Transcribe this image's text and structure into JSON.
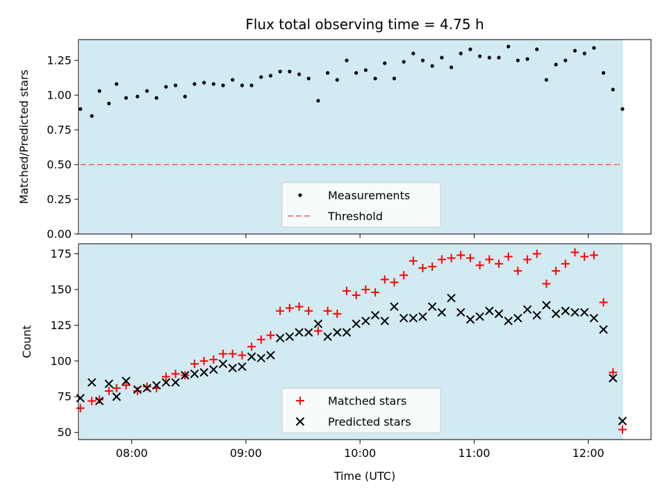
{
  "chart_data": [
    {
      "type": "scatter",
      "title": "Flux total observing time = 4.75 h",
      "xlabel": "",
      "ylabel": "Matched/Predicted stars",
      "xlim": [
        "07:32",
        "12:33"
      ],
      "ylim": [
        0,
        1.4
      ],
      "yticks": [
        "0.00",
        "0.25",
        "0.50",
        "0.75",
        "1.00",
        "1.25"
      ],
      "shaded_region": {
        "start": "07:33",
        "end": "12:18",
        "color": "#add8e6"
      },
      "legend_position": "bottom-center",
      "series": [
        {
          "name": "Measurements",
          "marker": "dot",
          "color": "#000000",
          "x": [
            "07:33",
            "07:39",
            "07:43",
            "07:48",
            "07:52",
            "07:57",
            "08:03",
            "08:08",
            "08:13",
            "08:18",
            "08:23",
            "08:28",
            "08:33",
            "08:38",
            "08:43",
            "08:48",
            "08:53",
            "08:58",
            "09:03",
            "09:08",
            "09:13",
            "09:18",
            "09:23",
            "09:28",
            "09:33",
            "09:38",
            "09:43",
            "09:48",
            "09:53",
            "09:58",
            "10:03",
            "10:08",
            "10:13",
            "10:18",
            "10:23",
            "10:28",
            "10:33",
            "10:38",
            "10:43",
            "10:48",
            "10:53",
            "10:58",
            "11:03",
            "11:08",
            "11:13",
            "11:18",
            "11:23",
            "11:28",
            "11:33",
            "11:38",
            "11:43",
            "11:48",
            "11:53",
            "11:58",
            "12:03",
            "12:08",
            "12:13",
            "12:18"
          ],
          "values": [
            0.9,
            0.85,
            1.03,
            0.94,
            1.08,
            0.98,
            0.99,
            1.03,
            0.98,
            1.06,
            1.07,
            0.99,
            1.08,
            1.09,
            1.08,
            1.07,
            1.11,
            1.07,
            1.07,
            1.13,
            1.14,
            1.17,
            1.17,
            1.15,
            1.12,
            0.96,
            1.16,
            1.11,
            1.25,
            1.16,
            1.18,
            1.12,
            1.23,
            1.12,
            1.24,
            1.3,
            1.25,
            1.21,
            1.27,
            1.2,
            1.3,
            1.33,
            1.28,
            1.27,
            1.27,
            1.35,
            1.25,
            1.26,
            1.33,
            1.11,
            1.22,
            1.25,
            1.32,
            1.3,
            1.34,
            1.16,
            1.04,
            0.9
          ]
        },
        {
          "name": "Threshold",
          "line": "dashed",
          "color": "#f08080",
          "value": 0.5
        }
      ]
    },
    {
      "type": "scatter",
      "title": "",
      "xlabel": "Time (UTC)",
      "ylabel": "Count",
      "xlim": [
        "07:32",
        "12:33"
      ],
      "ylim": [
        45,
        182
      ],
      "yticks": [
        "50",
        "75",
        "100",
        "125",
        "150",
        "175"
      ],
      "xticks": [
        "08:00",
        "09:00",
        "10:00",
        "11:00",
        "12:00"
      ],
      "shaded_region": {
        "start": "07:33",
        "end": "12:18",
        "color": "#add8e6"
      },
      "legend_position": "bottom-center",
      "x": [
        "07:33",
        "07:39",
        "07:43",
        "07:48",
        "07:52",
        "07:57",
        "08:03",
        "08:08",
        "08:13",
        "08:18",
        "08:23",
        "08:28",
        "08:33",
        "08:38",
        "08:43",
        "08:48",
        "08:53",
        "08:58",
        "09:03",
        "09:08",
        "09:13",
        "09:18",
        "09:23",
        "09:28",
        "09:33",
        "09:38",
        "09:43",
        "09:48",
        "09:53",
        "09:58",
        "10:03",
        "10:08",
        "10:13",
        "10:18",
        "10:23",
        "10:28",
        "10:33",
        "10:38",
        "10:43",
        "10:48",
        "10:53",
        "10:58",
        "11:03",
        "11:08",
        "11:13",
        "11:18",
        "11:23",
        "11:28",
        "11:33",
        "11:38",
        "11:43",
        "11:48",
        "11:53",
        "11:58",
        "12:03",
        "12:08",
        "12:13",
        "12:18"
      ],
      "series": [
        {
          "name": "Matched stars",
          "marker": "plus",
          "color": "#ff0000",
          "values": [
            67,
            72,
            73,
            79,
            81,
            83,
            79,
            82,
            81,
            89,
            91,
            90,
            98,
            100,
            101,
            105,
            105,
            104,
            110,
            115,
            118,
            135,
            137,
            138,
            135,
            121,
            135,
            133,
            149,
            146,
            150,
            148,
            157,
            155,
            160,
            170,
            165,
            166,
            171,
            172,
            174,
            172,
            167,
            171,
            168,
            173,
            163,
            171,
            175,
            154,
            163,
            168,
            176,
            173,
            174,
            141,
            92,
            52
          ]
        },
        {
          "name": "Predicted stars",
          "marker": "x",
          "color": "#000000",
          "values": [
            74,
            85,
            72,
            84,
            75,
            86,
            80,
            81,
            83,
            85,
            85,
            90,
            91,
            92,
            94,
            98,
            95,
            96,
            103,
            102,
            104,
            116,
            117,
            120,
            120,
            126,
            117,
            120,
            120,
            126,
            128,
            132,
            128,
            138,
            130,
            130,
            131,
            138,
            134,
            144,
            134,
            129,
            131,
            135,
            133,
            128,
            130,
            136,
            132,
            139,
            133,
            135,
            134,
            134,
            130,
            122,
            88,
            58
          ]
        }
      ]
    }
  ]
}
